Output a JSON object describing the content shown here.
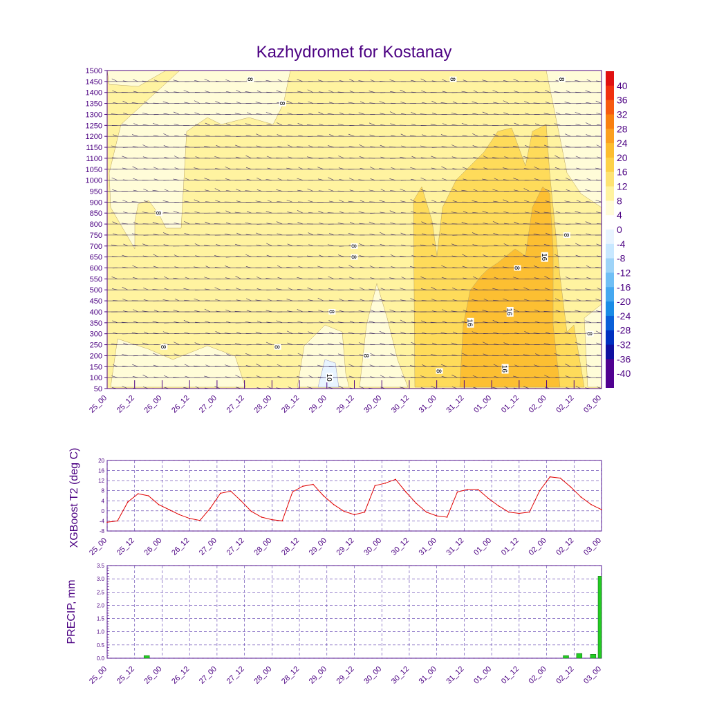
{
  "title": "Kazhydromet for Kostanay",
  "colors": {
    "frame": "#4b0082",
    "tickText": "#4b0082",
    "t2Line": "#e00000",
    "precipBar": "#22cc22",
    "grid": "#5533aa"
  },
  "time_labels": [
    "25_00",
    "25_12",
    "26_00",
    "26_12",
    "27_00",
    "27_12",
    "28_00",
    "28_12",
    "29_00",
    "29_12",
    "30_00",
    "30_12",
    "31_00",
    "31_12",
    "01_00",
    "01_12",
    "02_00",
    "02_12",
    "03_00"
  ],
  "chart_data": [
    {
      "type": "heatmap",
      "name": "cross-section",
      "ylabel": "",
      "y_ticks": [
        50,
        100,
        150,
        200,
        250,
        300,
        350,
        400,
        450,
        500,
        550,
        600,
        650,
        700,
        750,
        800,
        850,
        900,
        950,
        1000,
        1050,
        1100,
        1150,
        1200,
        1250,
        1300,
        1350,
        1400,
        1450,
        1500
      ],
      "ylim": [
        50,
        1500
      ],
      "colorbar_labels": [
        "40",
        "36",
        "32",
        "28",
        "24",
        "20",
        "16",
        "12",
        "8",
        "4",
        "0",
        "-4",
        "-8",
        "-12",
        "-16",
        "-20",
        "-24",
        "-28",
        "-32",
        "-36",
        "-40"
      ],
      "colorbar_colors": [
        "#e01010",
        "#f03010",
        "#f65a10",
        "#f88010",
        "#fba020",
        "#fcbd30",
        "#fdd24a",
        "#fee374",
        "#fff3a0",
        "#fffcd8",
        "#ffffff",
        "#e8f4ff",
        "#c8e8ff",
        "#9ed4f8",
        "#70bff5",
        "#45a8f0",
        "#1a8ce6",
        "#0a60d8",
        "#0030c0",
        "#1010a0",
        "#500090"
      ],
      "contour_labels": [
        {
          "text": "8",
          "t": 0.105,
          "h": 850
        },
        {
          "text": "8",
          "t": 0.29,
          "h": 1460
        },
        {
          "text": "8",
          "t": 0.355,
          "h": 1350
        },
        {
          "text": "8",
          "t": 0.7,
          "h": 1460
        },
        {
          "text": "8",
          "t": 0.92,
          "h": 1460
        },
        {
          "text": "8",
          "t": 0.93,
          "h": 750
        },
        {
          "text": "16",
          "t": 0.885,
          "h": 650
        },
        {
          "text": "16",
          "t": 0.815,
          "h": 400
        },
        {
          "text": "16",
          "t": 0.735,
          "h": 350
        },
        {
          "text": "16",
          "t": 0.805,
          "h": 140
        },
        {
          "text": "8",
          "t": 0.455,
          "h": 400
        },
        {
          "text": "8",
          "t": 0.525,
          "h": 200
        },
        {
          "text": "8",
          "t": 0.115,
          "h": 240
        },
        {
          "text": "8",
          "t": 0.345,
          "h": 240
        },
        {
          "text": "8",
          "t": 0.672,
          "h": 130
        },
        {
          "text": "8",
          "t": 0.977,
          "h": 300
        },
        {
          "text": "10",
          "t": 0.45,
          "h": 100
        },
        {
          "text": "8",
          "t": 0.5,
          "h": 700
        },
        {
          "text": "8",
          "t": 0.5,
          "h": 650
        },
        {
          "text": "8",
          "t": 0.83,
          "h": 600
        }
      ]
    },
    {
      "type": "line",
      "name": "t2",
      "ylabel": "XGBoost T2 (deg C)",
      "ylim": [
        -8,
        20
      ],
      "y_ticks": [
        -8,
        -4,
        0,
        4,
        8,
        12,
        16,
        20
      ],
      "x_index_range": [
        0,
        48
      ],
      "x": [
        0,
        1,
        2,
        3,
        4,
        5,
        6,
        7,
        8,
        9,
        10,
        11,
        12,
        13,
        14,
        15,
        16,
        17,
        18,
        19,
        20,
        21,
        22,
        23,
        24,
        25,
        26,
        27,
        28,
        29,
        30,
        31,
        32,
        33,
        34,
        35,
        36,
        37,
        38,
        39,
        40,
        41,
        42,
        43,
        44,
        45,
        46,
        47,
        48
      ],
      "values": [
        -4.5,
        -4.0,
        3.5,
        6.8,
        6.0,
        2.5,
        0.5,
        -1.5,
        -3.0,
        -3.8,
        1.0,
        7.0,
        7.8,
        4.0,
        -0.2,
        -2.5,
        -3.5,
        -4.0,
        7.5,
        9.8,
        10.5,
        6.0,
        2.5,
        -0.2,
        -1.5,
        -0.5,
        10.0,
        11.0,
        12.5,
        7.5,
        3.0,
        -0.5,
        -2.0,
        -2.5,
        7.5,
        8.5,
        8.5,
        5.0,
        2.0,
        -0.5,
        -1.0,
        -0.5,
        8.0,
        13.5,
        13.0,
        9.5,
        5.5,
        2.5,
        0.5
      ]
    },
    {
      "type": "bar",
      "name": "precip",
      "ylabel": "PRECIP, mm",
      "ylim": [
        0,
        3.5
      ],
      "y_ticks": [
        0.0,
        0.5,
        1.0,
        1.5,
        2.0,
        2.5,
        3.0,
        3.5
      ],
      "bars": [
        {
          "t": 0.08,
          "value": 0.1
        },
        {
          "t": 0.928,
          "value": 0.1
        },
        {
          "t": 0.955,
          "value": 0.18
        },
        {
          "t": 0.983,
          "value": 0.15
        },
        {
          "t": 0.998,
          "value": 3.1
        }
      ]
    }
  ]
}
